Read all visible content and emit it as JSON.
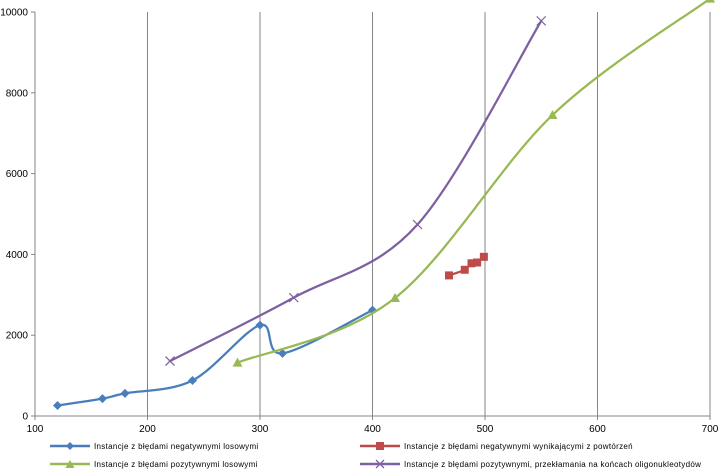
{
  "chart_data": {
    "type": "line",
    "title": "",
    "xlabel": "",
    "ylabel": "",
    "xlim": [
      100,
      700
    ],
    "ylim": [
      0,
      10000
    ],
    "x_ticks": [
      "100",
      "200",
      "300",
      "400",
      "500",
      "600",
      "700"
    ],
    "y_ticks": [
      "0",
      "2000",
      "4000",
      "6000",
      "8000",
      "10000"
    ],
    "grid": "vertical",
    "smooth": true,
    "legend_position": "bottom",
    "series": [
      {
        "name": "Instancje z błędami negatywnymi losowymi",
        "color": "#4a7ebb",
        "marker": "diamond",
        "points": [
          [
            120,
            260
          ],
          [
            160,
            430
          ],
          [
            180,
            560
          ],
          [
            240,
            880
          ],
          [
            300,
            2250
          ],
          [
            320,
            1550
          ],
          [
            400,
            2620
          ]
        ]
      },
      {
        "name": "Instancje z błędami negatywnymi wynikającymi z powtórzeń",
        "color": "#be4b48",
        "marker": "square",
        "points": [
          [
            468,
            3480
          ],
          [
            482,
            3620
          ],
          [
            488,
            3780
          ],
          [
            493,
            3800
          ],
          [
            499,
            3940
          ]
        ]
      },
      {
        "name": "Instancje z błędami pozytywnymi losowymi",
        "color": "#98b954",
        "marker": "triangle",
        "points": [
          [
            280,
            1320
          ],
          [
            420,
            2920
          ],
          [
            560,
            7450
          ],
          [
            700,
            10330
          ]
        ]
      },
      {
        "name": "Instancje z błędami pozytywnymi, przekłamania na końcach oligonukleotydów",
        "color": "#7d60a0",
        "marker": "x",
        "points": [
          [
            220,
            1360
          ],
          [
            330,
            2930
          ],
          [
            440,
            4740
          ],
          [
            550,
            9780
          ]
        ]
      }
    ]
  }
}
